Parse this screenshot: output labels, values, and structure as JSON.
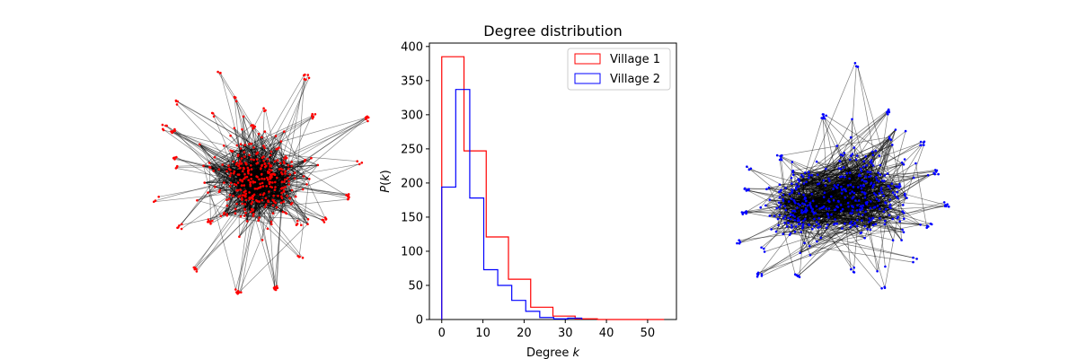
{
  "chart_data": [
    {
      "type": "network",
      "node_color": "#ff0000",
      "edge_color": "#000000"
    },
    {
      "type": "histogram-step",
      "title": "Degree distribution",
      "xlabel": "Degree k",
      "xlabel_text": "Degree ",
      "xlabel_symbol": "k",
      "ylabel": "P(k)",
      "ylabel_p": "P",
      "ylabel_k": "k",
      "xlim": [
        -3,
        57
      ],
      "ylim": [
        0,
        405
      ],
      "xticks": [
        0,
        10,
        20,
        30,
        40,
        50
      ],
      "yticks": [
        0,
        50,
        100,
        150,
        200,
        250,
        300,
        350,
        400
      ],
      "legend_position": "top-right",
      "series": [
        {
          "name": "Village 1",
          "color": "#ff0000",
          "bin_edges": [
            0,
            5.4,
            10.8,
            16.2,
            21.6,
            27.0,
            32.4,
            37.8,
            43.2,
            48.6,
            54.0
          ],
          "counts": [
            385,
            247,
            121,
            59,
            18,
            5,
            1,
            0,
            0,
            0
          ]
        },
        {
          "name": "Village 2",
          "color": "#0000ff",
          "bin_edges": [
            0,
            3.4,
            6.8,
            10.2,
            13.6,
            17.0,
            20.4,
            23.8,
            27.2,
            30.6,
            34.0
          ],
          "counts": [
            194,
            337,
            178,
            73,
            50,
            28,
            12,
            3,
            1,
            2
          ]
        }
      ]
    },
    {
      "type": "network",
      "node_color": "#0000ff",
      "edge_color": "#000000"
    }
  ]
}
